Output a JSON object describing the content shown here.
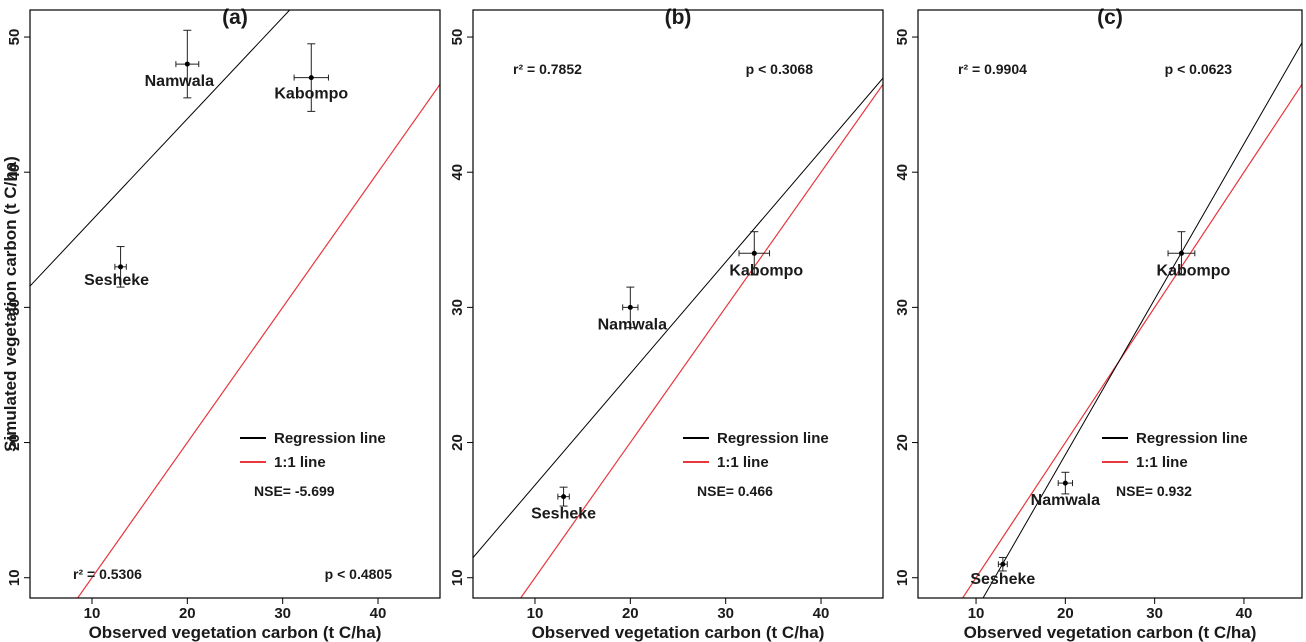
{
  "chart_data": [
    {
      "type": "scatter",
      "title": "(a)",
      "xlabel": "Observed vegetation carbon (t C/ha)",
      "ylabel": "Simulated vegetation carbon (t C/ha)",
      "xlim": [
        3.5,
        46.5
      ],
      "ylim": [
        8.5,
        52
      ],
      "xticks": [
        10,
        20,
        30,
        40
      ],
      "yticks": [
        10,
        20,
        30,
        40,
        50
      ],
      "points": [
        {
          "label": "Namwala",
          "x": 20,
          "y": 48,
          "xerr": 1.2,
          "yerr": 2.5
        },
        {
          "label": "Kabompo",
          "x": 33,
          "y": 47,
          "xerr": 1.8,
          "yerr": 2.5
        },
        {
          "label": "Sesheke",
          "x": 13,
          "y": 33,
          "xerr": 0.6,
          "yerr": 1.5
        }
      ],
      "regression": {
        "slope": 0.75,
        "intercept": 28.95
      },
      "one_to_one": true,
      "r2": "r² = 0.5306",
      "p": "p < 0.4805",
      "nse": "NSE= -5.699",
      "legend": [
        "Regression line",
        "1:1 line"
      ],
      "legend_colors": [
        "#000000",
        "#e8373d"
      ],
      "grid": false
    },
    {
      "type": "scatter",
      "title": "(b)",
      "xlabel": "Observed vegetation carbon (t C/ha)",
      "ylabel": "",
      "xlim": [
        3.5,
        46.5
      ],
      "ylim": [
        8.5,
        52
      ],
      "xticks": [
        10,
        20,
        30,
        40
      ],
      "yticks": [
        10,
        20,
        30,
        40,
        50
      ],
      "points": [
        {
          "label": "Namwala",
          "x": 20,
          "y": 30,
          "xerr": 0.8,
          "yerr": 1.5
        },
        {
          "label": "Kabompo",
          "x": 33,
          "y": 34,
          "xerr": 1.6,
          "yerr": 1.6
        },
        {
          "label": "Sesheke",
          "x": 13,
          "y": 16,
          "xerr": 0.6,
          "yerr": 0.7
        }
      ],
      "regression": {
        "slope": 0.825,
        "intercept": 8.6
      },
      "one_to_one": true,
      "r2": "r² = 0.7852",
      "p": "p < 0.3068",
      "nse": "NSE= 0.466",
      "legend": [
        "Regression line",
        "1:1 line"
      ],
      "legend_colors": [
        "#000000",
        "#e8373d"
      ],
      "grid": false
    },
    {
      "type": "scatter",
      "title": "(c)",
      "xlabel": "Observed vegetation carbon (t C/ha)",
      "ylabel": "",
      "xlim": [
        3.5,
        46.5
      ],
      "ylim": [
        8.5,
        52
      ],
      "xticks": [
        10,
        20,
        30,
        40
      ],
      "yticks": [
        10,
        20,
        30,
        40,
        50
      ],
      "points": [
        {
          "label": "Kabompo",
          "x": 33,
          "y": 34,
          "xerr": 1.5,
          "yerr": 1.6
        },
        {
          "label": "Namwala",
          "x": 20,
          "y": 17,
          "xerr": 0.8,
          "yerr": 0.8
        },
        {
          "label": "Sesheke",
          "x": 13,
          "y": 11,
          "xerr": 0.5,
          "yerr": 0.5
        }
      ],
      "regression": {
        "slope": 1.15,
        "intercept": -3.9
      },
      "one_to_one": true,
      "r2": "r² = 0.9904",
      "p": "p < 0.0623",
      "nse": "NSE= 0.932",
      "legend": [
        "Regression line",
        "1:1 line"
      ],
      "legend_colors": [
        "#000000",
        "#e8373d"
      ],
      "grid": false
    }
  ]
}
